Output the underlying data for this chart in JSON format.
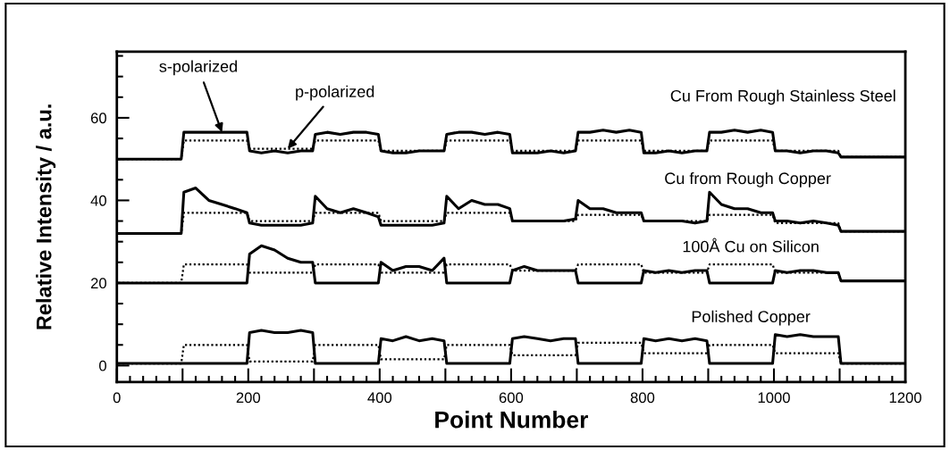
{
  "chart_data": {
    "type": "line",
    "xlabel": "Point Number",
    "ylabel": "Relative Intensity / a.u.",
    "xlim": [
      0,
      1200
    ],
    "ylim": [
      -4,
      76
    ],
    "xticks": [
      {
        "value": 0,
        "label": "0"
      },
      {
        "value": 20,
        "label": null
      },
      {
        "value": 40,
        "label": null
      },
      {
        "value": 60,
        "label": null
      },
      {
        "value": 80,
        "label": null
      },
      {
        "value": 100,
        "label": null
      },
      {
        "value": 120,
        "label": null
      },
      {
        "value": 140,
        "label": null
      },
      {
        "value": 160,
        "label": null
      },
      {
        "value": 180,
        "label": null
      },
      {
        "value": 200,
        "label": "200"
      },
      {
        "value": 220,
        "label": null
      },
      {
        "value": 240,
        "label": null
      },
      {
        "value": 260,
        "label": null
      },
      {
        "value": 280,
        "label": null
      },
      {
        "value": 300,
        "label": null
      },
      {
        "value": 320,
        "label": null
      },
      {
        "value": 340,
        "label": null
      },
      {
        "value": 360,
        "label": null
      },
      {
        "value": 380,
        "label": null
      },
      {
        "value": 400,
        "label": "400"
      },
      {
        "value": 420,
        "label": null
      },
      {
        "value": 440,
        "label": null
      },
      {
        "value": 460,
        "label": null
      },
      {
        "value": 480,
        "label": null
      },
      {
        "value": 500,
        "label": null
      },
      {
        "value": 520,
        "label": null
      },
      {
        "value": 540,
        "label": null
      },
      {
        "value": 560,
        "label": null
      },
      {
        "value": 580,
        "label": null
      },
      {
        "value": 600,
        "label": "600"
      },
      {
        "value": 620,
        "label": null
      },
      {
        "value": 640,
        "label": null
      },
      {
        "value": 660,
        "label": null
      },
      {
        "value": 680,
        "label": null
      },
      {
        "value": 700,
        "label": null
      },
      {
        "value": 720,
        "label": null
      },
      {
        "value": 740,
        "label": null
      },
      {
        "value": 760,
        "label": null
      },
      {
        "value": 780,
        "label": null
      },
      {
        "value": 800,
        "label": "800"
      },
      {
        "value": 820,
        "label": null
      },
      {
        "value": 840,
        "label": null
      },
      {
        "value": 860,
        "label": null
      },
      {
        "value": 880,
        "label": null
      },
      {
        "value": 900,
        "label": null
      },
      {
        "value": 920,
        "label": null
      },
      {
        "value": 940,
        "label": null
      },
      {
        "value": 960,
        "label": null
      },
      {
        "value": 980,
        "label": null
      },
      {
        "value": 1000,
        "label": "1000"
      },
      {
        "value": 1020,
        "label": null
      },
      {
        "value": 1040,
        "label": null
      },
      {
        "value": 1060,
        "label": null
      },
      {
        "value": 1080,
        "label": null
      },
      {
        "value": 1100,
        "label": null
      },
      {
        "value": 1120,
        "label": null
      },
      {
        "value": 1140,
        "label": null
      },
      {
        "value": 1160,
        "label": null
      },
      {
        "value": 1180,
        "label": null
      },
      {
        "value": 1200,
        "label": "1200"
      }
    ],
    "yticks": [
      0,
      {
        "value": 5,
        "label": null
      },
      {
        "value": 10,
        "label": null
      },
      {
        "value": 15,
        "label": null
      },
      20,
      {
        "value": 25,
        "label": null
      },
      {
        "value": 30,
        "label": null
      },
      {
        "value": 35,
        "label": null
      },
      40,
      {
        "value": 45,
        "label": null
      },
      {
        "value": 50,
        "label": null
      },
      {
        "value": 55,
        "label": null
      },
      60,
      {
        "value": 65,
        "label": null
      },
      {
        "value": 70,
        "label": null
      },
      {
        "value": 75,
        "label": null
      }
    ],
    "grid": false,
    "x": [
      2,
      20,
      40,
      60,
      80,
      98,
      102,
      120,
      140,
      160,
      180,
      198,
      202,
      220,
      240,
      260,
      280,
      298,
      302,
      320,
      340,
      360,
      380,
      398,
      402,
      420,
      440,
      460,
      480,
      498,
      502,
      520,
      540,
      560,
      580,
      598,
      602,
      620,
      640,
      660,
      680,
      698,
      702,
      720,
      740,
      760,
      780,
      798,
      802,
      820,
      840,
      860,
      880,
      898,
      902,
      920,
      940,
      960,
      980,
      998,
      1002,
      1020,
      1040,
      1060,
      1080,
      1098,
      1102,
      1120,
      1140,
      1160,
      1180,
      1198
    ],
    "series": [
      {
        "name": "s-polarized",
        "color": "#000000",
        "line_style": "solid",
        "values": [
          50,
          50,
          50,
          50,
          50,
          50,
          56.5,
          56.5,
          56.5,
          56.5,
          56.5,
          56.5,
          52,
          51.5,
          52,
          51.5,
          52,
          52,
          56,
          56.5,
          56,
          56.5,
          56.5,
          56,
          52,
          51.5,
          51.5,
          52,
          52,
          52,
          56,
          56.5,
          56.5,
          56,
          56.5,
          56,
          51.5,
          51.5,
          51.5,
          52,
          51.5,
          52,
          56.5,
          56.5,
          57,
          56.5,
          57,
          56.5,
          51.5,
          51.5,
          52,
          51.5,
          52,
          52,
          56.5,
          56.5,
          57,
          56.5,
          57,
          56.5,
          52,
          52,
          51.5,
          52,
          52,
          51.5,
          50.5,
          50.5,
          50.5,
          50.5,
          50.5,
          50.5
        ]
      },
      {
        "name": "p-polarized",
        "color": "#000000",
        "line_style": "dotted",
        "values": [
          50,
          50,
          50,
          50,
          50,
          50,
          54.5,
          54.5,
          54.5,
          54.5,
          54.5,
          54.5,
          52.5,
          52.5,
          52.5,
          52.5,
          52.5,
          52.5,
          54.5,
          54.5,
          54.5,
          54.5,
          54.5,
          54.5,
          52,
          52,
          52,
          52,
          52,
          52,
          54.5,
          54.5,
          54.5,
          54.5,
          54.5,
          54.5,
          52,
          52,
          52,
          52,
          52,
          52,
          54.5,
          54.5,
          54.5,
          54.5,
          54.5,
          54.5,
          52,
          52,
          52,
          52,
          52,
          52,
          54.5,
          54.5,
          54.5,
          54.5,
          54.5,
          54.5,
          52,
          52,
          52,
          52,
          52,
          52,
          50.5,
          50.5,
          50.5,
          50.5,
          50.5,
          50.5
        ]
      },
      {
        "color": "#000000",
        "line_style": "solid",
        "values": [
          32,
          32,
          32,
          32,
          32,
          32,
          42,
          43,
          40,
          39,
          38,
          37,
          34.5,
          34,
          34,
          34,
          34,
          34.5,
          41,
          38,
          37,
          38,
          37,
          36,
          34,
          34,
          34,
          34,
          34,
          34.5,
          41,
          38,
          40,
          39,
          39,
          38,
          35,
          35,
          35,
          35,
          35,
          35.5,
          40,
          38,
          38,
          37,
          37,
          37,
          35,
          35,
          35,
          35,
          34.5,
          35,
          42,
          39,
          38,
          38,
          37,
          37,
          35,
          35,
          34.5,
          35,
          34.5,
          34,
          32.5,
          32.5,
          32.5,
          32.5,
          32.5,
          32.5
        ]
      },
      {
        "color": "#000000",
        "line_style": "dotted",
        "values": [
          32,
          32,
          32,
          32,
          32,
          32,
          37,
          37,
          37,
          37,
          37,
          37,
          35,
          35,
          35,
          35,
          35,
          35,
          37,
          37,
          37,
          37,
          37,
          37,
          35,
          35,
          35,
          35,
          35,
          35,
          37,
          37,
          37,
          37,
          37,
          37,
          35,
          35,
          35,
          35,
          35,
          35,
          36.5,
          36.5,
          36.5,
          36.5,
          36.5,
          36.5,
          35,
          35,
          35,
          35,
          35,
          35,
          36.5,
          36.5,
          36.5,
          36.5,
          36.5,
          36.5,
          34.5,
          34.5,
          34.5,
          34.5,
          34.5,
          34.5,
          32.5,
          32.5,
          32.5,
          32.5,
          32.5,
          32.5
        ]
      },
      {
        "color": "#000000",
        "line_style": "solid",
        "values": [
          20,
          20,
          20,
          20,
          20,
          20,
          20,
          20,
          20,
          20,
          20,
          20,
          27,
          29,
          28,
          26,
          25,
          25,
          20,
          20,
          20,
          20,
          20,
          20,
          25,
          23,
          24,
          24,
          23,
          26,
          20,
          20,
          20,
          20,
          20,
          20,
          23,
          24,
          23,
          23,
          23,
          23,
          20,
          20,
          20,
          20,
          20,
          20,
          23,
          22.5,
          23,
          22.5,
          23,
          23,
          20,
          20,
          20,
          20,
          20,
          20,
          23,
          22.5,
          23,
          23,
          22.5,
          22.5,
          20.5,
          20.5,
          20.5,
          20.5,
          20.5,
          20.5
        ]
      },
      {
        "color": "#000000",
        "line_style": "dotted",
        "values": [
          20,
          20,
          20,
          20,
          20,
          20,
          24.5,
          24.5,
          24.5,
          24.5,
          24.5,
          24.5,
          22.5,
          22.5,
          22.5,
          22.5,
          22.5,
          22.5,
          24.5,
          24.5,
          24.5,
          24.5,
          24.5,
          24.5,
          22.5,
          22.5,
          22.5,
          22.5,
          22.5,
          22.5,
          24.5,
          24.5,
          24.5,
          24.5,
          24.5,
          24.5,
          23,
          23,
          23,
          23,
          23,
          23,
          24.5,
          24.5,
          24.5,
          24.5,
          24.5,
          24.5,
          22.5,
          22.5,
          22.5,
          22.5,
          22.5,
          22.5,
          24.5,
          24.5,
          24.5,
          24.5,
          24.5,
          24.5,
          22.5,
          22.5,
          22.5,
          22.5,
          22.5,
          22.5,
          20.5,
          20.5,
          20.5,
          20.5,
          20.5,
          20.5
        ]
      },
      {
        "color": "#000000",
        "line_style": "solid",
        "values": [
          0.5,
          0.5,
          0.5,
          0.5,
          0.5,
          0.5,
          0.5,
          0.5,
          0.5,
          0.5,
          0.5,
          0.5,
          8,
          8.5,
          8,
          8,
          8.5,
          8,
          0.5,
          0.5,
          0.5,
          0.5,
          0.5,
          0.5,
          6.5,
          6,
          7,
          6,
          6.5,
          6,
          0.5,
          0.5,
          0.5,
          0.5,
          0.5,
          0.5,
          6.5,
          7,
          6.5,
          6,
          6.5,
          6.5,
          0.5,
          0.5,
          0.5,
          0.5,
          0.5,
          0.5,
          6.5,
          6,
          6.5,
          6,
          6.5,
          6,
          0.5,
          0.5,
          0.5,
          0.5,
          0.5,
          0.5,
          7.5,
          7,
          7.5,
          7,
          7,
          7,
          0.5,
          0.5,
          0.5,
          0.5,
          0.5,
          0.5
        ]
      },
      {
        "color": "#000000",
        "line_style": "dotted",
        "values": [
          0.5,
          0.5,
          0.5,
          0.5,
          0.5,
          0.5,
          5,
          5,
          5,
          5,
          5,
          5,
          1,
          1,
          1,
          1,
          1,
          1,
          5,
          5,
          5,
          5,
          5,
          5,
          1.5,
          1.5,
          1.5,
          1.5,
          1.5,
          1.5,
          5,
          5,
          5,
          5,
          5,
          5,
          2.5,
          2.5,
          2.5,
          2.5,
          2.5,
          2.5,
          5.5,
          5.5,
          5.5,
          5.5,
          5.5,
          5.5,
          3,
          3,
          3,
          3,
          3,
          3,
          5,
          5,
          5,
          5,
          5,
          5,
          3,
          3,
          3,
          3,
          3,
          3,
          0.5,
          0.5,
          0.5,
          0.5,
          0.5,
          0.5
        ]
      }
    ],
    "annotations": [
      "Cu From Rough Stainless Steel",
      "Cu from Rough Copper",
      "100Å Cu on Silicon",
      "Polished Copper"
    ]
  }
}
